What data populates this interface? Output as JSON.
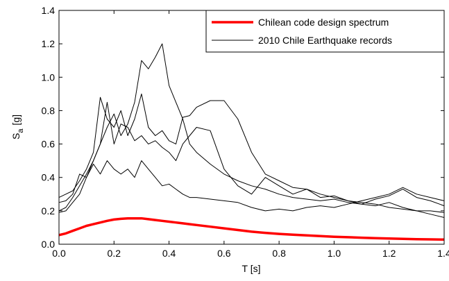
{
  "chart_data": {
    "type": "line",
    "xlabel": "T [s]",
    "ylabel": [
      "S",
      "a",
      "[g]"
    ],
    "x": [
      0,
      0.025,
      0.05,
      0.075,
      0.1,
      0.125,
      0.15,
      0.175,
      0.2,
      0.225,
      0.25,
      0.275,
      0.3,
      0.325,
      0.35,
      0.375,
      0.4,
      0.425,
      0.45,
      0.475,
      0.5,
      0.55,
      0.6,
      0.65,
      0.7,
      0.75,
      0.8,
      0.85,
      0.9,
      0.95,
      1.0,
      1.05,
      1.1,
      1.15,
      1.2,
      1.25,
      1.3,
      1.35,
      1.4
    ],
    "series": [
      {
        "name": "Chilean code design spectrum",
        "color": "#ff0000",
        "width": 3.5,
        "values": [
          0.055,
          0.065,
          0.08,
          0.095,
          0.11,
          0.12,
          0.13,
          0.14,
          0.148,
          0.152,
          0.155,
          0.155,
          0.155,
          0.15,
          0.145,
          0.14,
          0.135,
          0.13,
          0.125,
          0.12,
          0.115,
          0.105,
          0.095,
          0.085,
          0.075,
          0.068,
          0.062,
          0.057,
          0.053,
          0.049,
          0.045,
          0.042,
          0.039,
          0.036,
          0.034,
          0.032,
          0.03,
          0.029,
          0.028
        ]
      },
      {
        "name": "2010 Chile Earthquake records",
        "color": "#000000",
        "width": 1,
        "values": [
          [
            0.2,
            0.22,
            0.28,
            0.35,
            0.42,
            0.5,
            0.6,
            0.7,
            0.78,
            0.65,
            0.72,
            0.85,
            1.1,
            1.05,
            1.12,
            1.2,
            0.95,
            0.85,
            0.75,
            0.6,
            0.55,
            0.48,
            0.42,
            0.38,
            0.35,
            0.33,
            0.3,
            0.28,
            0.27,
            0.26,
            0.27,
            0.25,
            0.24,
            0.23,
            0.25,
            0.22,
            0.2,
            0.18,
            0.16
          ],
          [
            0.28,
            0.3,
            0.32,
            0.38,
            0.45,
            0.55,
            0.88,
            0.75,
            0.7,
            0.8,
            0.65,
            0.75,
            0.9,
            0.7,
            0.65,
            0.68,
            0.62,
            0.6,
            0.76,
            0.77,
            0.82,
            0.86,
            0.86,
            0.75,
            0.55,
            0.42,
            0.38,
            0.34,
            0.33,
            0.3,
            0.28,
            0.26,
            0.25,
            0.24,
            0.22,
            0.21,
            0.2,
            0.2,
            0.19
          ],
          [
            0.25,
            0.26,
            0.3,
            0.42,
            0.4,
            0.5,
            0.6,
            0.85,
            0.6,
            0.72,
            0.7,
            0.62,
            0.65,
            0.6,
            0.62,
            0.58,
            0.55,
            0.5,
            0.6,
            0.65,
            0.7,
            0.68,
            0.45,
            0.35,
            0.3,
            0.4,
            0.35,
            0.3,
            0.33,
            0.28,
            0.29,
            0.26,
            0.24,
            0.27,
            0.29,
            0.33,
            0.28,
            0.26,
            0.23
          ],
          [
            0.19,
            0.2,
            0.25,
            0.3,
            0.4,
            0.48,
            0.42,
            0.5,
            0.45,
            0.42,
            0.45,
            0.4,
            0.5,
            0.45,
            0.4,
            0.35,
            0.36,
            0.33,
            0.3,
            0.28,
            0.28,
            0.27,
            0.26,
            0.25,
            0.22,
            0.2,
            0.21,
            0.2,
            0.22,
            0.23,
            0.22,
            0.24,
            0.26,
            0.28,
            0.3,
            0.34,
            0.3,
            0.28,
            0.26
          ]
        ]
      }
    ],
    "xlim": [
      0,
      1.4
    ],
    "ylim": [
      0,
      1.4
    ],
    "xticks": [
      {
        "value": 0,
        "label": "0.0"
      },
      0.2,
      0.4,
      0.6,
      0.8,
      {
        "value": 1,
        "label": "1.0"
      },
      1.2,
      1.4
    ],
    "yticks": [
      {
        "value": 0,
        "label": "0.0"
      },
      0.2,
      0.4,
      0.6,
      0.8,
      {
        "value": 1,
        "label": "1.0"
      },
      1.2,
      1.4
    ],
    "legend": "top-right"
  }
}
